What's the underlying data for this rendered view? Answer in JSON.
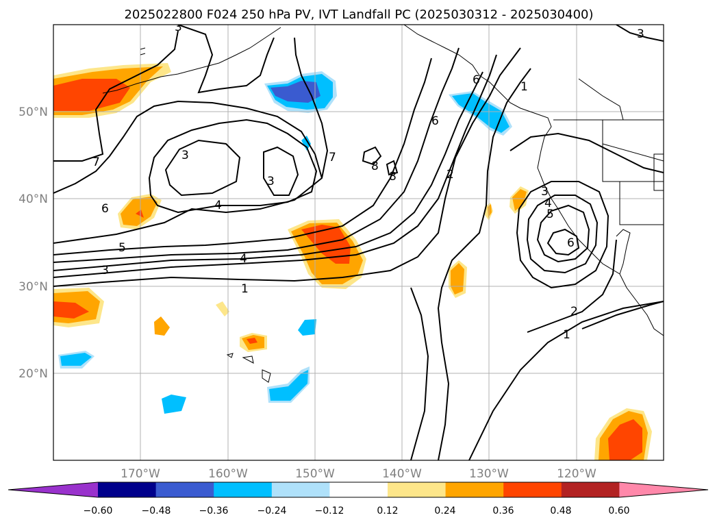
{
  "title": "2025022800 F024 250 hPa PV, IVT Landfall PC (2025030312 - 2025030400)",
  "map": {
    "lon_ticks": [
      "170°W",
      "160°W",
      "150°W",
      "140°W",
      "130°W",
      "120°W"
    ],
    "lat_ticks": [
      "50°N",
      "40°N",
      "30°N",
      "20°N"
    ],
    "grid": true,
    "contour_labels": [
      "3",
      "3",
      "7",
      "6",
      "7",
      "8",
      "8",
      "6",
      "2",
      "1",
      "3",
      "3",
      "4",
      "6",
      "5",
      "3",
      "4",
      "1",
      "3",
      "4",
      "5",
      "6",
      "2",
      "1"
    ]
  },
  "colorbar": {
    "ticks": [
      "−0.60",
      "−0.48",
      "−0.36",
      "−0.24",
      "−0.12",
      "0.12",
      "0.24",
      "0.36",
      "0.48",
      "0.60"
    ],
    "colors": [
      "#9932cc",
      "#00008b",
      "#3a5bd0",
      "#00bfff",
      "#afe1fa",
      "#ffffff",
      "#fde68a",
      "#ffa500",
      "#ff4500",
      "#b22222",
      "#ff88aa"
    ]
  }
}
